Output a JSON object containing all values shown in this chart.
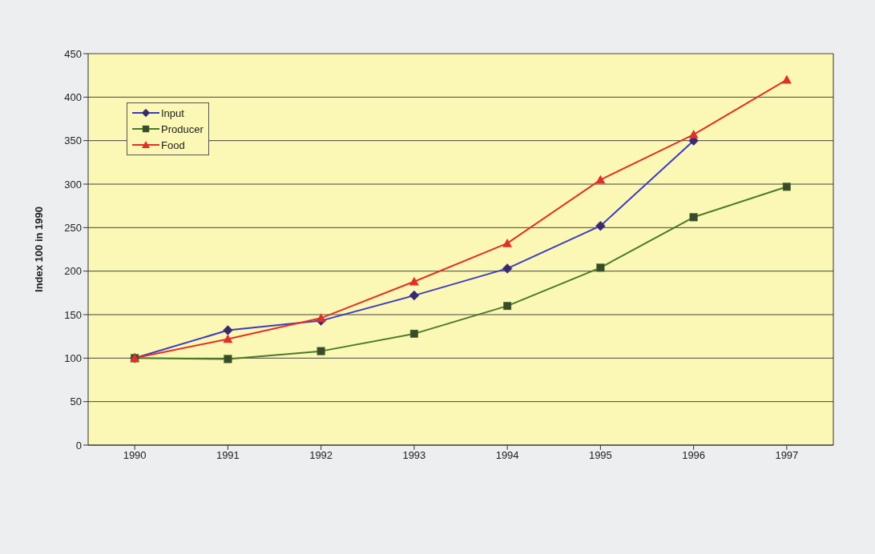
{
  "chart_data": {
    "type": "line",
    "ylabel": "Index 100 in 1990",
    "categories": [
      "1990",
      "1991",
      "1992",
      "1993",
      "1994",
      "1995",
      "1996",
      "1997"
    ],
    "series": [
      {
        "name": "Input",
        "color": "#3c3cc0",
        "marker": "diamond",
        "values": [
          100,
          132,
          143,
          172,
          203,
          252,
          350,
          null
        ]
      },
      {
        "name": "Producer",
        "color": "#4a7a2a",
        "marker": "square",
        "values": [
          100,
          99,
          108,
          128,
          160,
          204,
          262,
          297
        ]
      },
      {
        "name": "Food",
        "color": "#e0302a",
        "marker": "triangle",
        "values": [
          100,
          122,
          146,
          188,
          232,
          305,
          357,
          420
        ]
      }
    ],
    "ylim": [
      0,
      450
    ],
    "yticks": [
      0,
      50,
      100,
      150,
      200,
      250,
      300,
      350,
      400,
      450
    ],
    "grid": "y",
    "legend": "top left",
    "line_style": "solid"
  }
}
